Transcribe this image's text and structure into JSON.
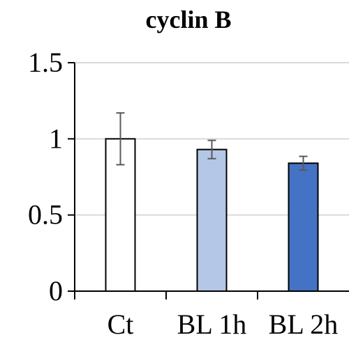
{
  "chart_data": {
    "type": "bar",
    "title": "cyclin B",
    "xlabel": "",
    "ylabel": "",
    "categories": [
      "Ct",
      "BL 1h",
      "BL 2h"
    ],
    "values": [
      1.0,
      0.93,
      0.84
    ],
    "errors": [
      0.17,
      0.06,
      0.045
    ],
    "colors": [
      "#ffffff",
      "#b4c7e7",
      "#4472c4"
    ],
    "ylim": [
      0,
      1.5
    ],
    "yticks": [
      0,
      0.5,
      1,
      1.5
    ],
    "ytick_labels": [
      "0",
      "0.5",
      "1",
      "1.5"
    ],
    "grid": true,
    "legend": "none"
  }
}
